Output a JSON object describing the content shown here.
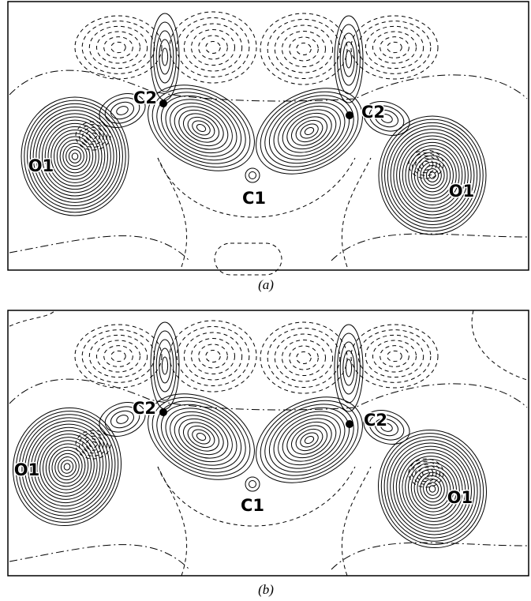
{
  "panels": [
    {
      "atoms": [
        "C2",
        "C2",
        "O1",
        "O1",
        "C1"
      ],
      "caption": "(a)"
    },
    {
      "atoms": [
        "C2",
        "C2",
        "O1",
        "O1",
        "C1"
      ],
      "caption": "(b)"
    }
  ]
}
